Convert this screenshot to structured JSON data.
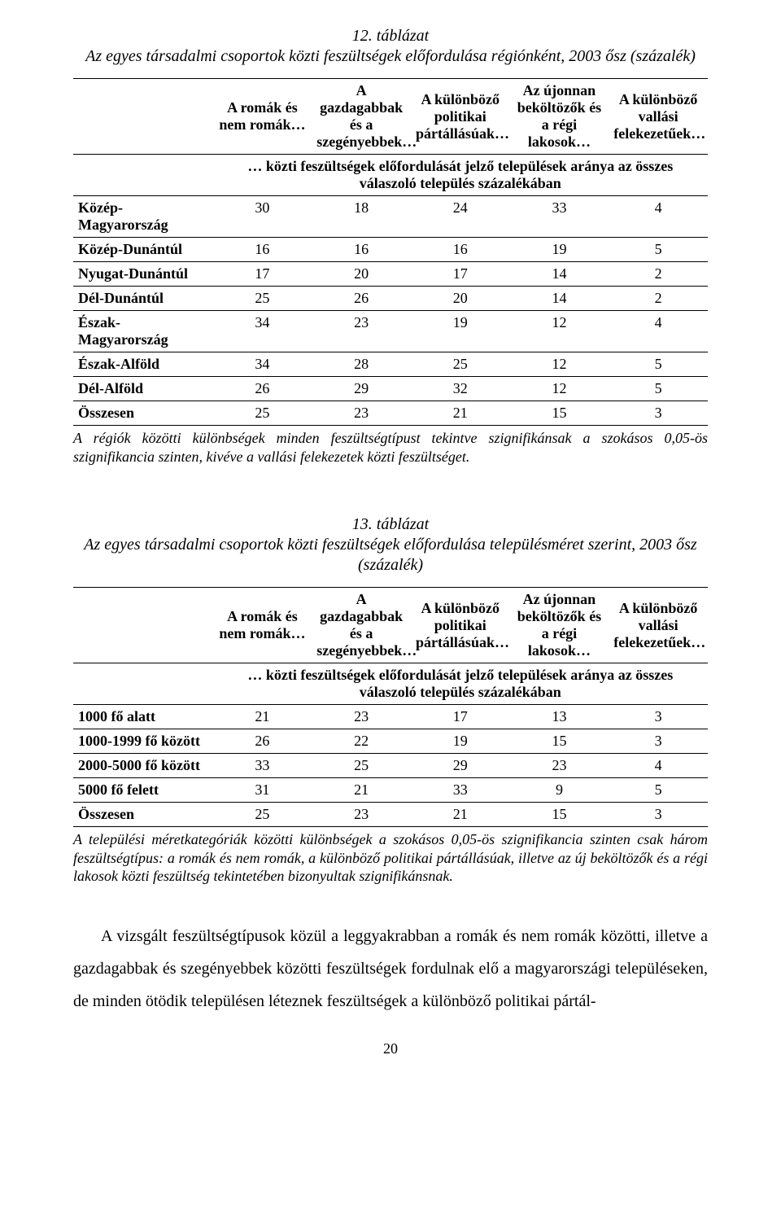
{
  "page_number": "20",
  "table12": {
    "title_line1": "12. táblázat",
    "title_line2": "Az egyes társadalmi csoportok közti feszültségek előfordulása régiónként, 2003 ősz (százalék)",
    "headers": [
      "A romák és nem romák…",
      "A gazdagabbak és a szegényebbek…",
      "A különböző politikai pártállásúak…",
      "Az újonnan beköltözők és a régi lakosok…",
      "A különböző vallási felekezetűek…"
    ],
    "subheader": "… közti feszültségek előfordulását jelző települések aránya az összes válaszoló település százalékában",
    "rows": [
      {
        "label": "Közép-Magyarország",
        "v": [
          "30",
          "18",
          "24",
          "33",
          "4"
        ]
      },
      {
        "label": "Közép-Dunántúl",
        "v": [
          "16",
          "16",
          "16",
          "19",
          "5"
        ]
      },
      {
        "label": "Nyugat-Dunántúl",
        "v": [
          "17",
          "20",
          "17",
          "14",
          "2"
        ]
      },
      {
        "label": "Dél-Dunántúl",
        "v": [
          "25",
          "26",
          "20",
          "14",
          "2"
        ]
      },
      {
        "label": "Észak-Magyarország",
        "v": [
          "34",
          "23",
          "19",
          "12",
          "4"
        ]
      },
      {
        "label": "Észak-Alföld",
        "v": [
          "34",
          "28",
          "25",
          "12",
          "5"
        ]
      },
      {
        "label": "Dél-Alföld",
        "v": [
          "26",
          "29",
          "32",
          "12",
          "5"
        ]
      },
      {
        "label": "Összesen",
        "v": [
          "25",
          "23",
          "21",
          "15",
          "3"
        ]
      }
    ],
    "note": "A régiók közötti különbségek minden feszültségtípust tekintve szignifikánsak a szokásos 0,05-ös szignifikancia szinten, kivéve a vallási felekezetek közti feszültséget."
  },
  "table13": {
    "title_line1": "13. táblázat",
    "title_line2": "Az egyes társadalmi csoportok közti feszültségek előfordulása településméret szerint, 2003 ősz (százalék)",
    "headers": [
      "A romák és nem romák…",
      "A gazdagabbak és a szegényebbek…",
      "A különböző politikai pártállásúak…",
      "Az újonnan beköltözők és a régi lakosok…",
      "A különböző vallási felekezetűek…"
    ],
    "subheader": "… közti feszültségek előfordulását jelző települések aránya az összes válaszoló település százalékában",
    "rows": [
      {
        "label": "1000 fő alatt",
        "v": [
          "21",
          "23",
          "17",
          "13",
          "3"
        ]
      },
      {
        "label": "1000-1999 fő között",
        "v": [
          "26",
          "22",
          "19",
          "15",
          "3"
        ]
      },
      {
        "label": "2000-5000 fő között",
        "v": [
          "33",
          "25",
          "29",
          "23",
          "4"
        ]
      },
      {
        "label": "5000 fő felett",
        "v": [
          "31",
          "21",
          "33",
          "9",
          "5"
        ]
      },
      {
        "label": "Összesen",
        "v": [
          "25",
          "23",
          "21",
          "15",
          "3"
        ]
      }
    ],
    "note": "A települési méretkategóriák közötti különbségek a szokásos 0,05-ös szignifikancia szinten csak három feszültségtípus: a romák és nem romák, a különböző politikai pártállásúak, illetve az új beköltözők és a régi lakosok közti feszültség tekintetében bizonyultak szignifikánsnak."
  },
  "body_paragraph": "A vizsgált feszültségtípusok közül a leggyakrabban a romák és nem romák közötti, illetve a gazdagabbak és szegényebbek közötti feszültségek fordulnak elő a magyarországi településeken, de minden ötödik településen léteznek feszültségek a különböző politikai pártál-"
}
